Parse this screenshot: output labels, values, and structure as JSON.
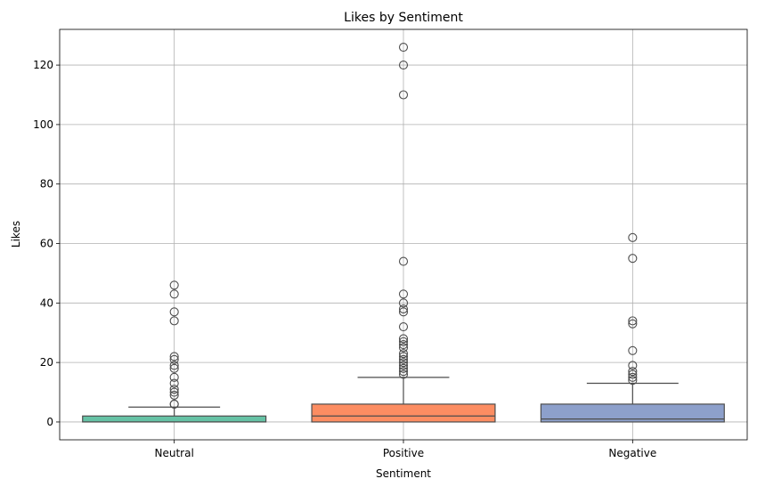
{
  "chart_data": {
    "type": "box",
    "title": "Likes by Sentiment",
    "xlabel": "Sentiment",
    "ylabel": "Likes",
    "ylim": [
      -6,
      132
    ],
    "yticks": [
      0,
      20,
      40,
      60,
      80,
      100,
      120
    ],
    "grid": true,
    "categories": [
      "Neutral",
      "Positive",
      "Negative"
    ],
    "boxes": [
      {
        "category": "Neutral",
        "color": "#66c2a5",
        "whisker_low": 0,
        "q1": 0,
        "median": 0,
        "q3": 2,
        "whisker_high": 5,
        "outliers": [
          6,
          6,
          9,
          10,
          11,
          13,
          15,
          18,
          19,
          21,
          22,
          34,
          37,
          43,
          46
        ]
      },
      {
        "category": "Positive",
        "color": "#fc8d62",
        "whisker_low": 0,
        "q1": 0,
        "median": 2,
        "q3": 6,
        "whisker_high": 15,
        "outliers": [
          16,
          17,
          18,
          19,
          20,
          21,
          22,
          23,
          25,
          26,
          27,
          28,
          32,
          37,
          38,
          40,
          43,
          54,
          110,
          120,
          126
        ]
      },
      {
        "category": "Negative",
        "color": "#8da0cb",
        "whisker_low": 0,
        "q1": 0,
        "median": 1,
        "q3": 6,
        "whisker_high": 13,
        "outliers": [
          14,
          15,
          16,
          17,
          19,
          24,
          33,
          34,
          55,
          62
        ]
      }
    ]
  }
}
